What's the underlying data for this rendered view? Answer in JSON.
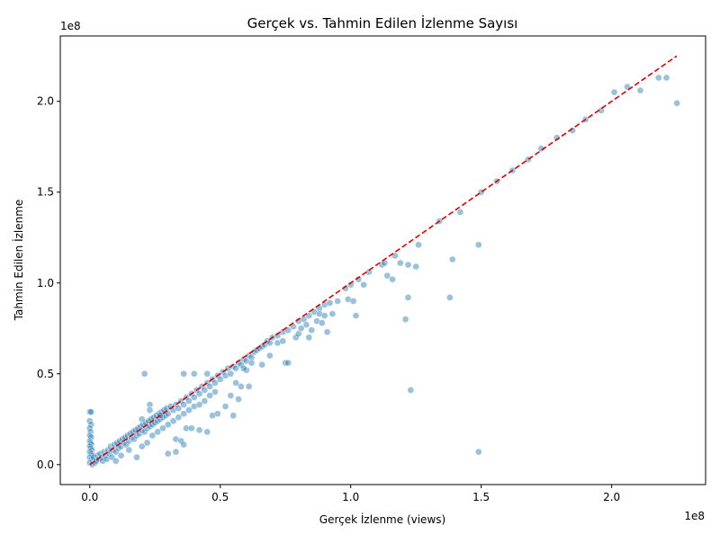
{
  "chart_data": {
    "type": "scatter",
    "title": "Gerçek vs. Tahmin Edilen İzlenme Sayısı",
    "xlabel": "Gerçek İzlenme (views)",
    "ylabel": "Tahmin Edilen İzlenme",
    "x_offset_label": "1e8",
    "y_offset_label": "1e8",
    "xlim": [
      -0.113,
      2.36
    ],
    "ylim": [
      -0.11,
      2.36
    ],
    "x_ticks": [
      0.0,
      0.5,
      1.0,
      1.5,
      2.0
    ],
    "x_tick_labels": [
      "0.0",
      "0.5",
      "1.0",
      "1.5",
      "2.0"
    ],
    "y_ticks": [
      0.0,
      0.5,
      1.0,
      1.5,
      2.0
    ],
    "y_tick_labels": [
      "0.0",
      "0.5",
      "1.0",
      "1.5",
      "2.0"
    ],
    "grid": false,
    "point_color": "#1f77b4",
    "point_opacity": 0.45,
    "reference_line": {
      "x": [
        0.0,
        2.25
      ],
      "y": [
        0.0,
        2.25
      ],
      "color": "#e00000",
      "style": "dashed"
    },
    "points": [
      [
        0.0,
        0.29
      ],
      [
        0.005,
        0.29
      ],
      [
        0.0,
        0.24
      ],
      [
        0.005,
        0.22
      ],
      [
        0.0,
        0.2
      ],
      [
        0.003,
        0.18
      ],
      [
        0.0,
        0.16
      ],
      [
        0.005,
        0.15
      ],
      [
        0.0,
        0.13
      ],
      [
        0.003,
        0.12
      ],
      [
        0.006,
        0.11
      ],
      [
        0.0,
        0.1
      ],
      [
        0.004,
        0.09
      ],
      [
        0.008,
        0.08
      ],
      [
        0.0,
        0.07
      ],
      [
        0.006,
        0.06
      ],
      [
        0.01,
        0.05
      ],
      [
        0.0,
        0.04
      ],
      [
        0.007,
        0.03
      ],
      [
        0.012,
        0.02
      ],
      [
        0.0,
        0.01
      ],
      [
        0.01,
        0.0
      ],
      [
        0.02,
        0.01
      ],
      [
        0.015,
        0.04
      ],
      [
        0.025,
        0.02
      ],
      [
        0.03,
        0.05
      ],
      [
        0.035,
        0.03
      ],
      [
        0.04,
        0.06
      ],
      [
        0.045,
        0.04
      ],
      [
        0.05,
        0.02
      ],
      [
        0.055,
        0.07
      ],
      [
        0.06,
        0.05
      ],
      [
        0.065,
        0.03
      ],
      [
        0.07,
        0.08
      ],
      [
        0.075,
        0.06
      ],
      [
        0.08,
        0.1
      ],
      [
        0.085,
        0.04
      ],
      [
        0.09,
        0.08
      ],
      [
        0.095,
        0.11
      ],
      [
        0.1,
        0.07
      ],
      [
        0.105,
        0.12
      ],
      [
        0.11,
        0.09
      ],
      [
        0.115,
        0.13
      ],
      [
        0.12,
        0.1
      ],
      [
        0.125,
        0.14
      ],
      [
        0.13,
        0.12
      ],
      [
        0.135,
        0.15
      ],
      [
        0.14,
        0.11
      ],
      [
        0.145,
        0.16
      ],
      [
        0.15,
        0.13
      ],
      [
        0.155,
        0.17
      ],
      [
        0.16,
        0.15
      ],
      [
        0.165,
        0.18
      ],
      [
        0.17,
        0.14
      ],
      [
        0.175,
        0.19
      ],
      [
        0.18,
        0.16
      ],
      [
        0.185,
        0.2
      ],
      [
        0.19,
        0.17
      ],
      [
        0.195,
        0.21
      ],
      [
        0.2,
        0.19
      ],
      [
        0.205,
        0.22
      ],
      [
        0.21,
        0.18
      ],
      [
        0.215,
        0.23
      ],
      [
        0.22,
        0.2
      ],
      [
        0.225,
        0.24
      ],
      [
        0.23,
        0.21
      ],
      [
        0.235,
        0.25
      ],
      [
        0.24,
        0.22
      ],
      [
        0.245,
        0.26
      ],
      [
        0.25,
        0.23
      ],
      [
        0.255,
        0.27
      ],
      [
        0.26,
        0.24
      ],
      [
        0.265,
        0.28
      ],
      [
        0.27,
        0.25
      ],
      [
        0.275,
        0.29
      ],
      [
        0.28,
        0.26
      ],
      [
        0.285,
        0.3
      ],
      [
        0.29,
        0.27
      ],
      [
        0.295,
        0.31
      ],
      [
        0.3,
        0.28
      ],
      [
        0.31,
        0.32
      ],
      [
        0.32,
        0.3
      ],
      [
        0.33,
        0.33
      ],
      [
        0.34,
        0.31
      ],
      [
        0.35,
        0.35
      ],
      [
        0.36,
        0.33
      ],
      [
        0.37,
        0.37
      ],
      [
        0.38,
        0.35
      ],
      [
        0.39,
        0.39
      ],
      [
        0.4,
        0.37
      ],
      [
        0.41,
        0.41
      ],
      [
        0.42,
        0.39
      ],
      [
        0.43,
        0.43
      ],
      [
        0.44,
        0.41
      ],
      [
        0.45,
        0.45
      ],
      [
        0.46,
        0.43
      ],
      [
        0.47,
        0.47
      ],
      [
        0.48,
        0.45
      ],
      [
        0.49,
        0.49
      ],
      [
        0.5,
        0.47
      ],
      [
        0.51,
        0.51
      ],
      [
        0.52,
        0.49
      ],
      [
        0.53,
        0.53
      ],
      [
        0.54,
        0.5
      ],
      [
        0.55,
        0.54
      ],
      [
        0.56,
        0.53
      ],
      [
        0.57,
        0.56
      ],
      [
        0.58,
        0.55
      ],
      [
        0.59,
        0.58
      ],
      [
        0.6,
        0.57
      ],
      [
        0.61,
        0.6
      ],
      [
        0.62,
        0.59
      ],
      [
        0.63,
        0.62
      ],
      [
        0.64,
        0.63
      ],
      [
        0.65,
        0.64
      ],
      [
        0.66,
        0.65
      ],
      [
        0.67,
        0.66
      ],
      [
        0.68,
        0.68
      ],
      [
        0.69,
        0.67
      ],
      [
        0.7,
        0.7
      ],
      [
        0.72,
        0.71
      ],
      [
        0.74,
        0.73
      ],
      [
        0.76,
        0.74
      ],
      [
        0.78,
        0.76
      ],
      [
        0.8,
        0.79
      ],
      [
        0.82,
        0.8
      ],
      [
        0.84,
        0.82
      ],
      [
        0.86,
        0.84
      ],
      [
        0.88,
        0.86
      ],
      [
        0.9,
        0.88
      ],
      [
        0.1,
        0.02
      ],
      [
        0.12,
        0.05
      ],
      [
        0.15,
        0.08
      ],
      [
        0.18,
        0.04
      ],
      [
        0.2,
        0.1
      ],
      [
        0.22,
        0.12
      ],
      [
        0.24,
        0.16
      ],
      [
        0.26,
        0.18
      ],
      [
        0.28,
        0.2
      ],
      [
        0.3,
        0.22
      ],
      [
        0.32,
        0.24
      ],
      [
        0.34,
        0.26
      ],
      [
        0.36,
        0.28
      ],
      [
        0.38,
        0.3
      ],
      [
        0.4,
        0.32
      ],
      [
        0.42,
        0.33
      ],
      [
        0.44,
        0.35
      ],
      [
        0.46,
        0.38
      ],
      [
        0.48,
        0.4
      ],
      [
        0.3,
        0.06
      ],
      [
        0.33,
        0.07
      ],
      [
        0.33,
        0.14
      ],
      [
        0.35,
        0.13
      ],
      [
        0.36,
        0.11
      ],
      [
        0.37,
        0.2
      ],
      [
        0.39,
        0.2
      ],
      [
        0.42,
        0.19
      ],
      [
        0.45,
        0.18
      ],
      [
        0.47,
        0.27
      ],
      [
        0.49,
        0.28
      ],
      [
        0.52,
        0.32
      ],
      [
        0.54,
        0.38
      ],
      [
        0.55,
        0.27
      ],
      [
        0.57,
        0.36
      ],
      [
        0.58,
        0.43
      ],
      [
        0.61,
        0.43
      ],
      [
        0.56,
        0.45
      ],
      [
        0.6,
        0.52
      ],
      [
        0.59,
        0.53
      ],
      [
        0.62,
        0.56
      ],
      [
        0.66,
        0.55
      ],
      [
        0.69,
        0.6
      ],
      [
        0.21,
        0.5
      ],
      [
        0.36,
        0.5
      ],
      [
        0.4,
        0.5
      ],
      [
        0.45,
        0.5
      ],
      [
        0.2,
        0.25
      ],
      [
        0.23,
        0.33
      ],
      [
        0.23,
        0.3
      ],
      [
        0.27,
        0.27
      ],
      [
        0.72,
        0.67
      ],
      [
        0.74,
        0.68
      ],
      [
        0.75,
        0.56
      ],
      [
        0.76,
        0.56
      ],
      [
        0.79,
        0.7
      ],
      [
        0.8,
        0.72
      ],
      [
        0.81,
        0.75
      ],
      [
        0.84,
        0.7
      ],
      [
        0.83,
        0.77
      ],
      [
        0.85,
        0.74
      ],
      [
        0.87,
        0.79
      ],
      [
        0.89,
        0.78
      ],
      [
        0.88,
        0.83
      ],
      [
        0.9,
        0.82
      ],
      [
        0.91,
        0.73
      ],
      [
        0.93,
        0.83
      ],
      [
        0.92,
        0.89
      ],
      [
        0.95,
        0.9
      ],
      [
        0.99,
        0.91
      ],
      [
        1.01,
        0.9
      ],
      [
        1.02,
        0.82
      ],
      [
        0.98,
        0.97
      ],
      [
        1.0,
        0.99
      ],
      [
        1.03,
        1.02
      ],
      [
        1.05,
        0.99
      ],
      [
        1.07,
        1.06
      ],
      [
        1.12,
        1.1
      ],
      [
        1.13,
        1.11
      ],
      [
        1.14,
        1.04
      ],
      [
        1.16,
        1.02
      ],
      [
        1.17,
        1.15
      ],
      [
        1.19,
        1.11
      ],
      [
        1.21,
        0.8
      ],
      [
        1.22,
        0.92
      ],
      [
        1.22,
        1.1
      ],
      [
        1.23,
        0.41
      ],
      [
        1.25,
        1.09
      ],
      [
        1.26,
        1.21
      ],
      [
        1.34,
        1.34
      ],
      [
        1.38,
        0.92
      ],
      [
        1.39,
        1.13
      ],
      [
        1.42,
        1.39
      ],
      [
        1.49,
        1.21
      ],
      [
        1.49,
        0.07
      ],
      [
        1.5,
        1.5
      ],
      [
        1.56,
        1.56
      ],
      [
        1.62,
        1.62
      ],
      [
        1.68,
        1.68
      ],
      [
        1.73,
        1.74
      ],
      [
        1.79,
        1.8
      ],
      [
        1.85,
        1.84
      ],
      [
        1.9,
        1.9
      ],
      [
        1.96,
        1.95
      ],
      [
        2.01,
        2.05
      ],
      [
        2.06,
        2.08
      ],
      [
        2.11,
        2.06
      ],
      [
        2.18,
        2.13
      ],
      [
        2.21,
        2.13
      ],
      [
        2.25,
        1.99
      ]
    ]
  }
}
